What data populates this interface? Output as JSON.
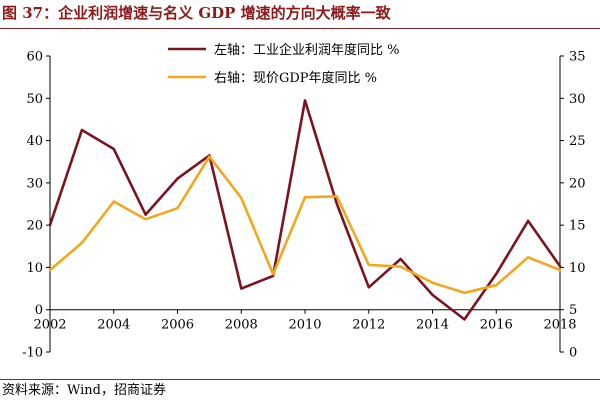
{
  "figure": {
    "title_prefix": "图 37：",
    "title_text": "企业利润增速与名义 GDP 增速的方向大概率一致",
    "source": "资料来源：Wind，招商证券"
  },
  "chart_data": {
    "type": "line",
    "x": [
      2002,
      2003,
      2004,
      2005,
      2006,
      2007,
      2008,
      2009,
      2010,
      2011,
      2012,
      2013,
      2014,
      2015,
      2016,
      2017,
      2018
    ],
    "x_ticks": [
      "2002",
      "2004",
      "2006",
      "2008",
      "2010",
      "2012",
      "2014",
      "2016",
      "2018"
    ],
    "x_tick_values": [
      2002,
      2004,
      2006,
      2008,
      2010,
      2012,
      2014,
      2016,
      2018
    ],
    "xlim": [
      2002,
      2018
    ],
    "y_left": {
      "ylim": [
        -10,
        60
      ],
      "ticks": [
        "-10",
        "0",
        "10",
        "20",
        "30",
        "40",
        "50",
        "60"
      ],
      "tick_values": [
        -10,
        0,
        10,
        20,
        30,
        40,
        50,
        60
      ]
    },
    "y_right": {
      "ylim": [
        0,
        35
      ],
      "ticks": [
        "0",
        "5",
        "10",
        "15",
        "20",
        "25",
        "30",
        "35"
      ],
      "tick_values": [
        0,
        5,
        10,
        15,
        20,
        25,
        30,
        35
      ]
    },
    "series": [
      {
        "name": "左轴：工业企业利润年度同比 %",
        "axis": "left",
        "color": "#7a1420",
        "values": [
          20.0,
          42.5,
          38.0,
          22.5,
          31.0,
          36.5,
          5.0,
          8.0,
          49.5,
          25.0,
          5.3,
          12.0,
          3.5,
          -2.3,
          8.5,
          21.0,
          10.3
        ]
      },
      {
        "name": "右轴：现价GDP年度同比 %",
        "axis": "right",
        "color": "#f0a81e",
        "values": [
          9.7,
          12.9,
          17.8,
          15.7,
          17.0,
          23.1,
          18.2,
          9.2,
          18.3,
          18.4,
          10.3,
          10.1,
          8.2,
          7.0,
          7.9,
          11.2,
          9.7
        ]
      }
    ],
    "grid": false,
    "legend_placement": "top-center"
  }
}
